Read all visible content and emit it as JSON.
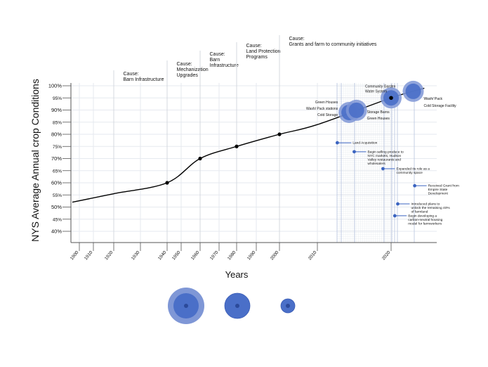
{
  "chart_data": {
    "type": "line",
    "title": "",
    "xlabel": "Years",
    "ylabel": "NYS Average Annual crop Conditions",
    "x_ticks": [
      "1900",
      "1910",
      "1920",
      "1930",
      "1940",
      "1950",
      "1960",
      "1970",
      "1980",
      "1990",
      "2000",
      "2010",
      "2020"
    ],
    "y_ticks": [
      "100%",
      "95%",
      "90%",
      "85%",
      "80%",
      "75%",
      "70%",
      "65%",
      "60%",
      "55%",
      "50%",
      "45%",
      "40%"
    ],
    "ylim": [
      40,
      100
    ],
    "grid": true,
    "series": [
      {
        "points": [
          [
            1895,
            52
          ],
          [
            1920,
            55.5
          ],
          [
            1940,
            60
          ],
          [
            1960,
            70
          ],
          [
            1980,
            75
          ],
          [
            2000,
            80
          ],
          [
            2010,
            84
          ],
          [
            2020,
            95
          ],
          [
            2024.5,
            99
          ]
        ],
        "markers": [
          [
            1940,
            60
          ],
          [
            1960,
            70
          ],
          [
            1980,
            75
          ],
          [
            2000,
            80
          ],
          [
            2020,
            95
          ]
        ]
      }
    ],
    "causes": [
      {
        "year": 1920,
        "lines": [
          "Cause:",
          "Barn Infrastructure"
        ]
      },
      {
        "year": 1940,
        "lines": [
          "Cause:",
          "Mechanization",
          "Upgrades"
        ]
      },
      {
        "year": 1960,
        "lines": [
          "Cause:",
          "Barn",
          "Infrastructure"
        ]
      },
      {
        "year": 1980,
        "lines": [
          "Cause:",
          "Land Protection",
          "Programs"
        ]
      },
      {
        "year": 2000,
        "lines": [
          "Cause:",
          "Grants and farm to community initiatives"
        ]
      }
    ],
    "bubbles": [
      {
        "year": 2014.3,
        "value": 89,
        "size": "large",
        "labels": [
          "Green Houses",
          "Wash/ Pack stations",
          "Cold Storage"
        ],
        "side": "left"
      },
      {
        "year": 2015.3,
        "value": 89.9,
        "size": "large",
        "labels": [
          "Storage Barns",
          "Green Houses"
        ],
        "side": "right"
      },
      {
        "year": 2020,
        "value": 95,
        "size": "large",
        "labels": [
          "Community Garden",
          "Water System"
        ],
        "side": "top"
      },
      {
        "year": 2023,
        "value": 97.7,
        "size": "large",
        "labels": [
          "Wash/ Pack",
          "Cold Storage Facility"
        ],
        "side": "right"
      }
    ],
    "events": [
      {
        "year": 2012.7,
        "value": 76.5,
        "lines": [
          "Land Acquisition"
        ]
      },
      {
        "year": 2015,
        "value": 72.8,
        "lines": [
          "Begin selling produce to",
          "NYC markets, Hudson",
          "Valley restaurants and",
          "wholesalers"
        ]
      },
      {
        "year": 2018.9,
        "value": 65.8,
        "lines": [
          "Expanded its role as a",
          "community space"
        ]
      },
      {
        "year": 2023.2,
        "value": 58.8,
        "lines": [
          "Received Grant from",
          "Empire State",
          "Development"
        ]
      },
      {
        "year": 2020.9,
        "value": 51.3,
        "lines": [
          "Introduced plans to",
          "unlock the remaining 40%",
          "of farmland"
        ]
      },
      {
        "year": 2020.5,
        "value": 46.4,
        "lines": [
          "Begin developing a",
          "carbon-neutral housing",
          "model for farmworkers"
        ]
      }
    ],
    "legend_sizes": [
      "large",
      "medium",
      "small"
    ],
    "colors": {
      "line": "#000000",
      "bubble": "#4a6fc8",
      "bubble_outer": "#7f97d6",
      "event": "#3b64c0",
      "grid": "#e6e9ef",
      "guide": "#b7c4e0"
    }
  }
}
